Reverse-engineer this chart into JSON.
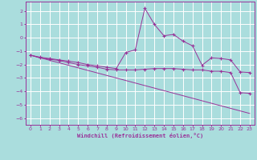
{
  "xlabel": "Windchill (Refroidissement éolien,°C)",
  "xlim": [
    -0.5,
    23.5
  ],
  "ylim": [
    -6.5,
    2.7
  ],
  "yticks": [
    -6,
    -5,
    -4,
    -3,
    -2,
    -1,
    0,
    1,
    2
  ],
  "xticks": [
    0,
    1,
    2,
    3,
    4,
    5,
    6,
    7,
    8,
    9,
    10,
    11,
    12,
    13,
    14,
    15,
    16,
    17,
    18,
    19,
    20,
    21,
    22,
    23
  ],
  "line_color": "#993399",
  "bg_color": "#aadddd",
  "grid_color": "#cceeee",
  "line1_x": [
    0,
    1,
    2,
    3,
    4,
    5,
    6,
    7,
    8,
    9,
    10,
    11,
    12,
    13,
    14,
    15,
    16,
    17,
    18,
    19,
    20,
    21,
    22,
    23
  ],
  "line1_y": [
    -1.3,
    -1.45,
    -1.55,
    -1.65,
    -1.75,
    -1.85,
    -2.0,
    -2.1,
    -2.2,
    -2.3,
    -1.1,
    -0.9,
    2.2,
    1.0,
    0.15,
    0.25,
    -0.25,
    -0.6,
    -2.05,
    -1.5,
    -1.55,
    -1.65,
    -2.55,
    -2.6
  ],
  "line2_x": [
    0,
    1,
    2,
    3,
    4,
    5,
    6,
    7,
    8,
    9,
    10,
    11,
    12,
    13,
    14,
    15,
    16,
    17,
    18,
    19,
    20,
    21,
    22,
    23
  ],
  "line2_y": [
    -1.3,
    -1.5,
    -1.6,
    -1.7,
    -1.85,
    -2.0,
    -2.1,
    -2.2,
    -2.35,
    -2.4,
    -2.4,
    -2.4,
    -2.35,
    -2.3,
    -2.3,
    -2.3,
    -2.35,
    -2.4,
    -2.4,
    -2.5,
    -2.5,
    -2.6,
    -4.1,
    -4.15
  ],
  "line3_x": [
    0,
    23
  ],
  "line3_y": [
    -1.3,
    -5.65
  ]
}
